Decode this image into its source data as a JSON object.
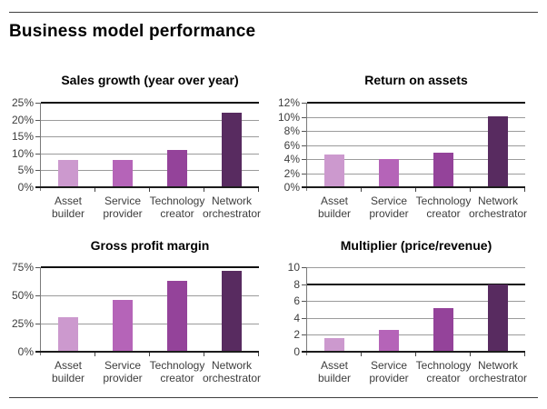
{
  "page": {
    "title": "Business model performance"
  },
  "palette": {
    "asset_builder": "#CC99CE",
    "service_provider": "#B564B8",
    "technology_creator": "#94439A",
    "network_orchestrator": "#582B60",
    "gridline": "#9B9B9B",
    "emphasis_line": "#111111",
    "axis_line": "#1C1C1C",
    "label_text": "#3D3D3D"
  },
  "chart_data": [
    {
      "type": "bar",
      "title": "Sales growth (year over year)",
      "categories": [
        "Asset\nbuilder",
        "Service\nprovider",
        "Technology\ncreator",
        "Network\norchestrator"
      ],
      "values": [
        8,
        8,
        11,
        22
      ],
      "unit": "%",
      "ylim": [
        0,
        25
      ],
      "yticks": [
        "25%",
        "20%",
        "15%",
        "10%",
        "5%",
        "0%"
      ],
      "ytick_values": [
        25,
        20,
        15,
        10,
        5,
        0
      ],
      "emphasis_line_at": 25,
      "grid": true,
      "legend": false
    },
    {
      "type": "bar",
      "title": "Return on assets",
      "categories": [
        "Asset\nbuilder",
        "Service\nprovider",
        "Technology\ncreator",
        "Network\norchestrator"
      ],
      "values": [
        4.7,
        4,
        4.9,
        10
      ],
      "unit": "%",
      "ylim": [
        0,
        12
      ],
      "yticks": [
        "12%",
        "10%",
        "8%",
        "6%",
        "4%",
        "2%",
        "0%"
      ],
      "ytick_values": [
        12,
        10,
        8,
        6,
        4,
        2,
        0
      ],
      "emphasis_line_at": 12,
      "grid": true,
      "legend": false
    },
    {
      "type": "bar",
      "title": "Gross profit margin",
      "categories": [
        "Asset\nbuilder",
        "Service\nprovider",
        "Technology\ncreator",
        "Network\norchestrator"
      ],
      "values": [
        31,
        46,
        63,
        72
      ],
      "unit": "%",
      "ylim": [
        0,
        75
      ],
      "yticks": [
        "75%",
        "50%",
        "25%",
        "0%"
      ],
      "ytick_values": [
        75,
        50,
        25,
        0
      ],
      "emphasis_line_at": 75,
      "grid": true,
      "legend": false
    },
    {
      "type": "bar",
      "title": "Multiplier (price/revenue)",
      "categories": [
        "Asset\nbuilder",
        "Service\nprovider",
        "Technology\ncreator",
        "Network\norchestrator"
      ],
      "values": [
        1.6,
        2.6,
        5.2,
        8
      ],
      "unit": "x",
      "ylim": [
        0,
        10
      ],
      "yticks": [
        "10",
        "8",
        "6",
        "4",
        "2",
        "0"
      ],
      "ytick_values": [
        10,
        8,
        6,
        4,
        2,
        0
      ],
      "emphasis_line_at": 8,
      "grid": true,
      "legend": false
    }
  ]
}
